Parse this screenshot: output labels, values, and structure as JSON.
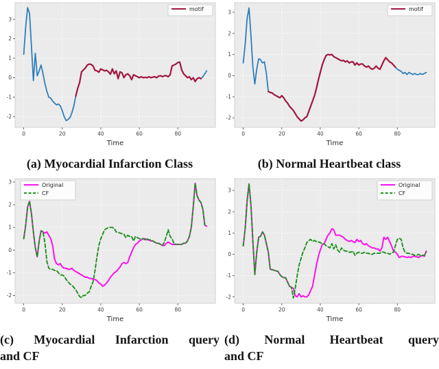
{
  "colors": {
    "figure_bg": "#ffffff",
    "plot_bg": "#ebebeb",
    "plot_border": "#d2d2d2",
    "grid": "#ffffff",
    "tick_text": "#3d3d3d",
    "label_text": "#2b2b2b",
    "query_blue": "#2e7ebc",
    "motif_red": "#a3173e",
    "original_magenta": "#fb10ef",
    "cf_green": "#1f8f1f",
    "legend_bg": "#fcfcfc",
    "legend_border": "#c6c6c6"
  },
  "chart_data": [
    {
      "id": "a",
      "type": "line",
      "caption_lines": [
        "(a) Myocardial Infarction Class"
      ],
      "xlabel": "Time",
      "xticks": [
        0,
        20,
        40,
        60,
        80
      ],
      "yticks": [
        3,
        2,
        1,
        0,
        -1,
        -2
      ],
      "xlim": [
        -4.5,
        99.5
      ],
      "ylim": [
        -2.55,
        3.85
      ],
      "grid": true,
      "legend": {
        "position": "top-right",
        "entries": [
          {
            "label": "motif",
            "color": "motif_red",
            "dash": false
          }
        ]
      },
      "series": [
        {
          "name": "query",
          "color": "query_blue",
          "dash": false,
          "lw": 1.8,
          "x_start": 0,
          "values": [
            1.2,
            2.6,
            3.6,
            3.3,
            1.6,
            -0.15,
            1.25,
            0.1,
            0.35,
            0.65,
            0.2,
            -0.3,
            -0.7,
            -1.0,
            -1.05,
            -1.2,
            -1.3,
            -1.4,
            -1.35,
            -1.45,
            -1.7,
            -2.0,
            -2.2,
            -2.15,
            -2.05,
            -1.8,
            -1.45,
            -0.95,
            -0.55,
            -0.25,
            0.3,
            0.4,
            0.5,
            0.65,
            0.7,
            0.68,
            0.6,
            0.38,
            0.35,
            0.28,
            0.45,
            0.4,
            0.35,
            0.38,
            0.3,
            0.18,
            0.45,
            0.2,
            0.35,
            -0.05,
            0.3,
            0.25,
            0.0,
            0.15,
            0.2,
            0.1,
            -0.1,
            0.15,
            0.1,
            0.05,
            0.0,
            0.05,
            0.0,
            0.02,
            0.0,
            0.05,
            0.0,
            0.03,
            0.05,
            0.0,
            0.08,
            0.1,
            0.05,
            0.1,
            0.1,
            0.05,
            0.15,
            0.6,
            0.65,
            0.7,
            0.78,
            0.8,
            0.4,
            0.2,
            0.1,
            0.0,
            0.05,
            -0.1,
            0.0,
            -0.2,
            -0.05,
            0.0,
            -0.05,
            0.05,
            0.2,
            0.35
          ]
        },
        {
          "name": "motif",
          "color": "motif_red",
          "dash": false,
          "lw": 2.2,
          "x_start": 27,
          "values": [
            -0.95,
            -0.55,
            -0.25,
            0.3,
            0.4,
            0.5,
            0.65,
            0.7,
            0.68,
            0.6,
            0.38,
            0.35,
            0.28,
            0.45,
            0.4,
            0.35,
            0.38,
            0.3,
            0.18,
            0.45,
            0.2,
            0.35,
            -0.05,
            0.3,
            0.25,
            0.0,
            0.15,
            0.2,
            0.1,
            -0.1,
            0.15,
            0.1,
            0.05,
            0.0,
            0.05,
            0.0,
            0.02,
            0.0,
            0.05,
            0.0,
            0.03,
            0.05,
            0.0,
            0.08,
            0.1,
            0.05,
            0.1,
            0.1,
            0.05,
            0.15,
            0.6,
            0.65,
            0.7,
            0.78,
            0.8,
            0.4,
            0.2,
            0.1,
            0.0,
            0.05,
            -0.1,
            0.0,
            -0.2,
            -0.05,
            0.0,
            -0.05
          ]
        }
      ]
    },
    {
      "id": "b",
      "type": "line",
      "caption_lines": [
        "(b) Normal Heartbeat class"
      ],
      "xlabel": "Time",
      "xticks": [
        0,
        20,
        40,
        60,
        80
      ],
      "yticks": [
        3,
        2,
        1,
        0,
        -1,
        -2
      ],
      "xlim": [
        -4.5,
        99.5
      ],
      "ylim": [
        -2.45,
        3.45
      ],
      "grid": true,
      "legend": {
        "position": "top-right",
        "entries": [
          {
            "label": "motif",
            "color": "motif_red",
            "dash": false
          }
        ]
      },
      "series": [
        {
          "name": "query",
          "color": "query_blue",
          "dash": false,
          "lw": 1.8,
          "x_start": 0,
          "values": [
            0.6,
            1.5,
            2.7,
            3.2,
            1.9,
            0.4,
            -0.4,
            0.3,
            0.8,
            0.75,
            0.6,
            0.65,
            0.1,
            -0.75,
            -0.8,
            -0.82,
            -0.9,
            -0.95,
            -1.0,
            -1.05,
            -0.95,
            -1.05,
            -1.2,
            -1.3,
            -1.45,
            -1.55,
            -1.65,
            -1.8,
            -1.95,
            -2.05,
            -2.15,
            -2.1,
            -2.0,
            -1.95,
            -1.7,
            -1.45,
            -1.2,
            -0.95,
            -0.6,
            -0.2,
            0.15,
            0.5,
            0.75,
            0.95,
            1.0,
            0.98,
            1.0,
            0.9,
            0.85,
            0.8,
            0.75,
            0.7,
            0.72,
            0.65,
            0.7,
            0.6,
            0.65,
            0.65,
            0.5,
            0.6,
            0.5,
            0.55,
            0.55,
            0.45,
            0.4,
            0.45,
            0.35,
            0.3,
            0.35,
            0.45,
            0.35,
            0.3,
            0.5,
            0.7,
            0.85,
            0.75,
            0.65,
            0.6,
            0.5,
            0.4,
            0.3,
            0.25,
            0.2,
            0.1,
            0.15,
            0.05,
            0.15,
            0.1,
            0.05,
            0.1,
            0.05,
            0.05,
            0.1,
            0.05,
            0.1,
            0.15
          ]
        },
        {
          "name": "motif",
          "color": "motif_red",
          "dash": false,
          "lw": 2.2,
          "x_start": 13,
          "values": [
            -0.75,
            -0.8,
            -0.82,
            -0.9,
            -0.95,
            -1.0,
            -1.05,
            -0.95,
            -1.05,
            -1.2,
            -1.3,
            -1.45,
            -1.55,
            -1.65,
            -1.8,
            -1.95,
            -2.05,
            -2.15,
            -2.1,
            -2.0,
            -1.95,
            -1.7,
            -1.45,
            -1.2,
            -0.95,
            -0.6,
            -0.2,
            0.15,
            0.5,
            0.75,
            0.95,
            1.0,
            0.98,
            1.0,
            0.9,
            0.85,
            0.8,
            0.75,
            0.7,
            0.72,
            0.65,
            0.7,
            0.6,
            0.65,
            0.65,
            0.5,
            0.6,
            0.5,
            0.55,
            0.55,
            0.45,
            0.4,
            0.45,
            0.35,
            0.3,
            0.35,
            0.45,
            0.35,
            0.3,
            0.5,
            0.7,
            0.85,
            0.75,
            0.65,
            0.6,
            0.5,
            0.4
          ]
        }
      ]
    },
    {
      "id": "c",
      "type": "line",
      "caption_lines": [
        "(c) Myocardial Infarction query",
        "and CF"
      ],
      "xlabel": "Time",
      "xticks": [
        0,
        20,
        40,
        60,
        80
      ],
      "yticks": [
        3,
        2,
        1,
        0,
        -1,
        -2
      ],
      "xlim": [
        -4.5,
        99.5
      ],
      "ylim": [
        -2.35,
        3.15
      ],
      "grid": true,
      "legend": {
        "position": "top-left",
        "entries": [
          {
            "label": "Original",
            "color": "original_magenta",
            "dash": false
          },
          {
            "label": "CF",
            "color": "cf_green",
            "dash": true
          }
        ]
      },
      "series": [
        {
          "name": "original",
          "color": "original_magenta",
          "dash": false,
          "lw": 2.0,
          "x_start": 0,
          "values": [
            0.5,
            1.1,
            1.9,
            2.15,
            1.6,
            0.8,
            0.1,
            -0.3,
            0.4,
            0.85,
            0.8,
            0.75,
            0.8,
            0.65,
            0.5,
            0.2,
            -0.4,
            -0.6,
            -0.65,
            -0.6,
            -0.75,
            -0.8,
            -0.8,
            -0.85,
            -0.85,
            -0.8,
            -0.9,
            -0.95,
            -1.0,
            -1.05,
            -1.1,
            -1.15,
            -1.2,
            -1.2,
            -1.25,
            -1.25,
            -1.3,
            -1.3,
            -1.35,
            -1.45,
            -1.5,
            -1.6,
            -1.55,
            -1.45,
            -1.35,
            -1.2,
            -1.1,
            -1.0,
            -0.95,
            -0.85,
            -0.75,
            -0.6,
            -0.55,
            -0.6,
            -0.55,
            -0.3,
            -0.1,
            0.1,
            0.25,
            0.3,
            0.4,
            0.45,
            0.5,
            0.5,
            0.45,
            0.45,
            0.4,
            0.4,
            0.35,
            0.3,
            0.3,
            0.25,
            0.2,
            0.2,
            0.3,
            0.35,
            0.3,
            0.25,
            0.25,
            0.25,
            0.25,
            0.25,
            0.25,
            0.3,
            0.3,
            0.4,
            0.6,
            1.0,
            1.9,
            2.95,
            2.4,
            2.2,
            2.1,
            1.8,
            1.1,
            1.05
          ]
        },
        {
          "name": "cf",
          "color": "cf_green",
          "dash": true,
          "lw": 1.9,
          "x_start": 0,
          "values": [
            0.5,
            1.1,
            1.9,
            2.15,
            1.6,
            0.8,
            0.1,
            -0.3,
            0.4,
            0.85,
            0.8,
            0.3,
            -0.5,
            -0.8,
            -0.85,
            -0.85,
            -0.9,
            -0.9,
            -1.0,
            -1.1,
            -1.1,
            -1.15,
            -1.3,
            -1.4,
            -1.5,
            -1.55,
            -1.65,
            -1.75,
            -1.9,
            -2.05,
            -2.1,
            -2.0,
            -2.0,
            -1.9,
            -1.85,
            -1.6,
            -1.4,
            -0.9,
            -0.3,
            0.2,
            0.5,
            0.7,
            0.9,
            0.95,
            1.0,
            1.0,
            1.0,
            0.95,
            0.8,
            0.78,
            0.75,
            0.72,
            0.7,
            0.55,
            0.65,
            0.6,
            0.6,
            0.4,
            0.6,
            0.55,
            0.5,
            0.5,
            0.5,
            0.45,
            0.5,
            0.45,
            0.45,
            0.4,
            0.35,
            0.3,
            0.3,
            0.25,
            0.2,
            0.35,
            0.6,
            0.9,
            0.6,
            0.5,
            0.3,
            0.25,
            0.25,
            0.25,
            0.25,
            0.3,
            0.3,
            0.4,
            0.6,
            1.0,
            1.9,
            2.95,
            2.4,
            2.2,
            2.1,
            1.8,
            1.1,
            1.05
          ]
        }
      ]
    },
    {
      "id": "d",
      "type": "line",
      "caption_lines": [
        "(d) Normal Heartbeat query",
        "and CF"
      ],
      "xlabel": "Time",
      "xticks": [
        0,
        20,
        40,
        60,
        80
      ],
      "yticks": [
        3,
        2,
        1,
        0,
        -1,
        -2
      ],
      "xlim": [
        -4.5,
        99.5
      ],
      "ylim": [
        -2.3,
        3.55
      ],
      "grid": true,
      "legend": {
        "position": "top-right",
        "entries": [
          {
            "label": "Original",
            "color": "original_magenta",
            "dash": false
          },
          {
            "label": "CF",
            "color": "cf_green",
            "dash": true
          }
        ]
      },
      "series": [
        {
          "name": "original",
          "color": "original_magenta",
          "dash": false,
          "lw": 2.0,
          "x_start": 0,
          "values": [
            0.4,
            1.2,
            2.5,
            3.3,
            2.3,
            0.6,
            -0.95,
            0.1,
            0.8,
            0.85,
            1.05,
            0.9,
            0.5,
            0.1,
            -0.7,
            -0.72,
            -0.75,
            -0.78,
            -0.8,
            -0.95,
            -1.05,
            -1.1,
            -1.1,
            -1.3,
            -1.5,
            -1.55,
            -1.6,
            -1.95,
            -2.0,
            -1.85,
            -2.0,
            -1.95,
            -2.0,
            -2.0,
            -1.9,
            -1.7,
            -1.5,
            -1.0,
            -0.5,
            -0.1,
            0.2,
            0.45,
            0.5,
            0.7,
            0.9,
            1.0,
            1.2,
            1.15,
            0.9,
            0.9,
            0.9,
            0.85,
            0.8,
            0.7,
            0.65,
            0.6,
            0.65,
            0.6,
            0.55,
            0.7,
            0.6,
            0.65,
            0.5,
            0.45,
            0.5,
            0.4,
            0.35,
            0.3,
            0.3,
            0.25,
            0.25,
            0.15,
            0.3,
            0.8,
            0.7,
            0.8,
            0.6,
            0.4,
            0.15,
            0.1,
            0.0,
            -0.15,
            -0.1,
            -0.1,
            -0.12,
            -0.15,
            -0.12,
            -0.15,
            -0.1,
            -0.1,
            -0.12,
            -0.15,
            -0.1,
            -0.05,
            -0.1,
            0.15
          ]
        },
        {
          "name": "cf",
          "color": "cf_green",
          "dash": true,
          "lw": 1.9,
          "x_start": 0,
          "values": [
            0.4,
            1.2,
            2.5,
            3.3,
            2.3,
            0.6,
            -0.95,
            0.1,
            0.8,
            0.85,
            1.05,
            0.9,
            0.5,
            0.1,
            -0.7,
            -0.72,
            -0.75,
            -0.78,
            -0.8,
            -0.95,
            -1.05,
            -1.1,
            -1.1,
            -1.3,
            -1.5,
            -1.55,
            -2.05,
            -1.6,
            -1.0,
            -0.5,
            -0.2,
            0.1,
            0.3,
            0.55,
            0.65,
            0.7,
            0.6,
            0.65,
            0.6,
            0.58,
            0.55,
            0.5,
            0.5,
            0.4,
            0.35,
            0.3,
            0.5,
            0.25,
            0.45,
            0.2,
            0.1,
            0.3,
            0.2,
            0.15,
            0.15,
            0.1,
            0.1,
            0.15,
            -0.05,
            0.05,
            0.1,
            0.05,
            0.05,
            0.1,
            0.05,
            0.05,
            0.0,
            0.0,
            0.05,
            0.05,
            0.05,
            0.05,
            0.1,
            0.1,
            0.05,
            0.05,
            0.0,
            0.05,
            0.1,
            0.4,
            0.7,
            0.75,
            0.7,
            0.3,
            0.1,
            0.05,
            0.05,
            0.0,
            0.0,
            -0.05,
            -0.05,
            0.0,
            -0.05,
            -0.05,
            -0.05,
            0.1
          ]
        }
      ]
    }
  ]
}
